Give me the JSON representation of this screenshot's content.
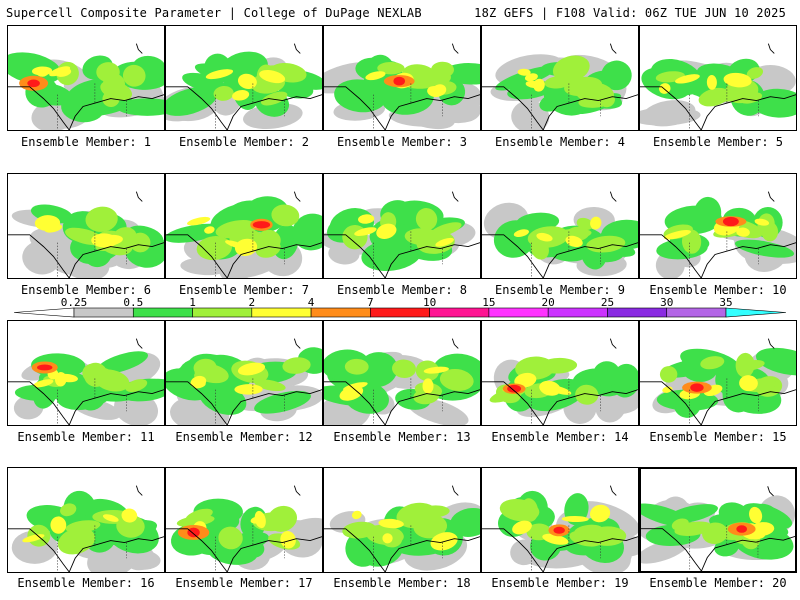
{
  "header": {
    "title": "Supercell Composite Parameter | College of DuPage NEXLAB",
    "run_info": "18Z GEFS | F108 Valid: 06Z TUE JUN 10 2025"
  },
  "legend": {
    "thresholds": [
      "0.25",
      "0.5",
      "1",
      "2",
      "4",
      "7",
      "10",
      "15",
      "20",
      "25",
      "30",
      "35"
    ],
    "colors": [
      "#ffffff",
      "#c8c8c8",
      "#3ee04a",
      "#a0f03a",
      "#ffff33",
      "#ff8c1a",
      "#ff1a1a",
      "#ff1493",
      "#ff33ff",
      "#cc33ff",
      "#8a2be2",
      "#b366e6",
      "#33ffff"
    ]
  },
  "members": [
    {
      "label": "Ensemble Member: 1"
    },
    {
      "label": "Ensemble Member: 2"
    },
    {
      "label": "Ensemble Member: 3"
    },
    {
      "label": "Ensemble Member: 4"
    },
    {
      "label": "Ensemble Member: 5"
    },
    {
      "label": "Ensemble Member: 6"
    },
    {
      "label": "Ensemble Member: 7"
    },
    {
      "label": "Ensemble Member: 8"
    },
    {
      "label": "Ensemble Member: 9"
    },
    {
      "label": "Ensemble Member: 10"
    },
    {
      "label": "Ensemble Member: 11"
    },
    {
      "label": "Ensemble Member: 12"
    },
    {
      "label": "Ensemble Member: 13"
    },
    {
      "label": "Ensemble Member: 14"
    },
    {
      "label": "Ensemble Member: 15"
    },
    {
      "label": "Ensemble Member: 16"
    },
    {
      "label": "Ensemble Member: 17"
    },
    {
      "label": "Ensemble Member: 18"
    },
    {
      "label": "Ensemble Member: 19"
    },
    {
      "label": "Ensemble Member: 20"
    }
  ],
  "selected_member": "Ensemble Member: 20"
}
